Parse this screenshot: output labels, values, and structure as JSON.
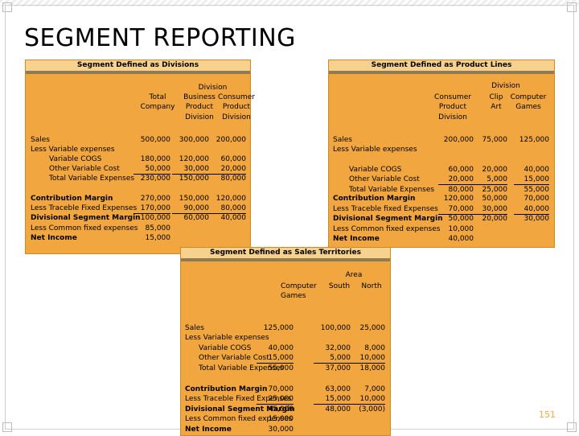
{
  "slide": {
    "title": "SEGMENT REPORTING",
    "page_number": "151"
  },
  "divisions": {
    "title": "Segment Defined as Divisions",
    "group_header": "Division",
    "columns": [
      "Total Company",
      "Business Product Division",
      "Consumer Product Division"
    ],
    "col_lines": [
      [
        "Total",
        "Company"
      ],
      [
        "Business",
        "Product",
        "Division"
      ],
      [
        "Consumer",
        "Product",
        "Division"
      ]
    ],
    "rows": [
      {
        "label": "Sales",
        "values": [
          "500,000",
          "300,000",
          "200,000"
        ]
      },
      {
        "label": "Less Variable expenses",
        "values": [
          "",
          "",
          ""
        ]
      },
      {
        "label": "Variable COGS",
        "values": [
          "180,000",
          "120,000",
          "60,000"
        ]
      },
      {
        "label": "Other Variable Cost",
        "values": [
          "50,000",
          "30,000",
          "20,000"
        ]
      },
      {
        "label": "Total Variable Expenses",
        "values": [
          "230,000",
          "150,000",
          "80,000"
        ]
      },
      {
        "label": "Contribution Margin",
        "values": [
          "270,000",
          "150,000",
          "120,000"
        ]
      },
      {
        "label": "Less Traceble Fixed Expenses",
        "values": [
          "170,000",
          "90,000",
          "80,000"
        ]
      },
      {
        "label": "Divisional Segment Margin",
        "values": [
          "100,000",
          "60,000",
          "40,000"
        ]
      },
      {
        "label": "Less Common fixed expenses",
        "values": [
          "85,000",
          "",
          ""
        ]
      },
      {
        "label": "Net Income",
        "values": [
          "15,000",
          "",
          ""
        ]
      }
    ]
  },
  "product_lines": {
    "title": "Segment Defined as Product Lines",
    "group_header": "Division",
    "col_lines": [
      [
        "Consumer",
        "Product",
        "Division"
      ],
      [
        "Clip",
        "Art"
      ],
      [
        "Computer",
        "Games"
      ]
    ],
    "rows": [
      {
        "label": "Sales",
        "values": [
          "200,000",
          "75,000",
          "125,000"
        ]
      },
      {
        "label": "Less Variable expenses",
        "values": [
          "",
          "",
          ""
        ]
      },
      {
        "label": "Variable COGS",
        "values": [
          "60,000",
          "20,000",
          "40,000"
        ]
      },
      {
        "label": "Other Variable Cost",
        "values": [
          "20,000",
          "5,000",
          "15,000"
        ]
      },
      {
        "label": "Total Variable Expenses",
        "values": [
          "80,000",
          "25,000",
          "55,000"
        ]
      },
      {
        "label": "Contribution Margin",
        "values": [
          "120,000",
          "50,000",
          "70,000"
        ]
      },
      {
        "label": "Less Traceble fixed Expenses",
        "values": [
          "70,000",
          "30,000",
          "40,000"
        ]
      },
      {
        "label": "Divisional Segment Margin",
        "values": [
          "50,000",
          "20,000",
          "30,000"
        ]
      },
      {
        "label": "Less Common fixed expenses",
        "values": [
          "10,000",
          "",
          ""
        ]
      },
      {
        "label": "Net Income",
        "values": [
          "40,000",
          "",
          ""
        ]
      }
    ]
  },
  "territories": {
    "title": "Segment Defined as Sales Territories",
    "group_header": "Area",
    "col_lines": [
      [
        "Computer",
        "Games"
      ],
      [
        "South"
      ],
      [
        "North"
      ]
    ],
    "rows": [
      {
        "label": "Sales",
        "values": [
          "125,000",
          "100,000",
          "25,000"
        ]
      },
      {
        "label": "Less Variable expenses",
        "values": [
          "",
          "",
          ""
        ]
      },
      {
        "label": "Variable COGS",
        "values": [
          "40,000",
          "32,000",
          "8,000"
        ]
      },
      {
        "label": "Other Variable Cost",
        "values": [
          "15,000",
          "5,000",
          "10,000"
        ]
      },
      {
        "label": "Total Variable Expenses",
        "values": [
          "55,000",
          "37,000",
          "18,000"
        ]
      },
      {
        "label": "Contribution Margin",
        "values": [
          "70,000",
          "63,000",
          "7,000"
        ]
      },
      {
        "label": "Less Traceble Fixed Expenses",
        "values": [
          "25,000",
          "15,000",
          "10,000"
        ]
      },
      {
        "label": "Divisional Segment Margin",
        "values": [
          "45,000",
          "48,000",
          "(3,000)"
        ]
      },
      {
        "label": "Less Common fixed expenses",
        "values": [
          "15,000",
          "",
          ""
        ]
      },
      {
        "label": "Net Income",
        "values": [
          "30,000",
          "",
          ""
        ]
      }
    ]
  }
}
